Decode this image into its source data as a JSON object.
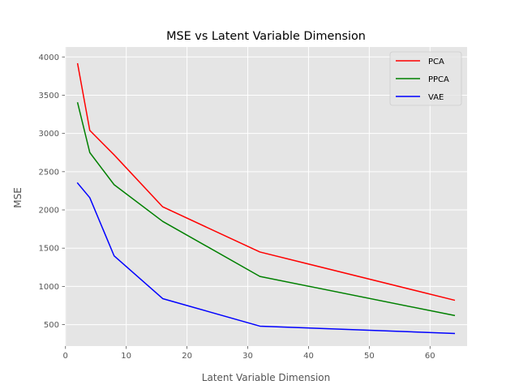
{
  "chart_data": {
    "type": "line",
    "title": "MSE vs Latent Variable Dimension",
    "xlabel": "Latent Variable Dimension",
    "ylabel": "MSE",
    "xlim": [
      -0.1,
      66.1
    ],
    "ylim": [
      220,
      4130
    ],
    "xticks": [
      0,
      10,
      20,
      30,
      40,
      50,
      60
    ],
    "yticks": [
      500,
      1000,
      1500,
      2000,
      2500,
      3000,
      3500,
      4000
    ],
    "grid": true,
    "legend_position": "top-right",
    "x": [
      2,
      4,
      8,
      16,
      32,
      64
    ],
    "series": [
      {
        "name": "PCA",
        "color": "#ff0000",
        "values": [
          3910,
          3040,
          2720,
          2040,
          1450,
          820
        ]
      },
      {
        "name": "PPCA",
        "color": "#008000",
        "values": [
          3400,
          2750,
          2330,
          1850,
          1130,
          620
        ]
      },
      {
        "name": "VAE",
        "color": "#0000ff",
        "values": [
          2350,
          2160,
          1400,
          840,
          480,
          385
        ]
      }
    ]
  }
}
